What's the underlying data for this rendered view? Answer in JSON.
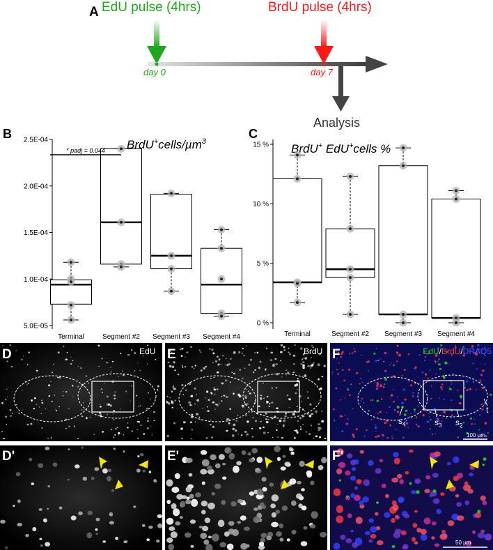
{
  "panel_letters": {
    "a": "A",
    "b": "B",
    "c": "C",
    "d": "D",
    "e": "E",
    "f": "F",
    "d_prime": "D'",
    "e_prime": "E'",
    "f_prime": "F'"
  },
  "timeline": {
    "edu_pulse": "EdU pulse (4hrs)",
    "brdu_pulse": "BrdU pulse (4hrs)",
    "day0": "day 0",
    "day7": "day 7",
    "analysis": "Analysis",
    "colors": {
      "edu": "#1fa81f",
      "brdu": "#ff1a1a",
      "arrow": "#444444"
    }
  },
  "chart_data": [
    {
      "type": "box",
      "panel": "B",
      "title_main": "BrdU",
      "title_sup": "+",
      "title_rest": "cells/µm",
      "title_sup2": "3",
      "categories": [
        "Terminal",
        "Segment #2",
        "Segment #3",
        "Segment #4"
      ],
      "ylim": [
        5e-05,
        0.00025
      ],
      "yticks": [
        {
          "v": 5e-05,
          "label": "5.0E-05"
        },
        {
          "v": 0.0001,
          "label": "1.0E-04"
        },
        {
          "v": 0.00015,
          "label": "1.5E-04"
        },
        {
          "v": 0.0002,
          "label": "2.0E-04"
        },
        {
          "v": 0.00025,
          "label": "2.5E-04"
        }
      ],
      "boxes": [
        {
          "q1": 7.3e-05,
          "median": 9.4e-05,
          "q3": 9.9e-05,
          "wlo": 5.6e-05,
          "whi": 0.000118
        },
        {
          "q1": 0.000116,
          "median": 0.000161,
          "q3": 0.00024,
          "wlo": 0.000113,
          "whi": 0.00024
        },
        {
          "q1": 0.000111,
          "median": 0.000125,
          "q3": 0.000191,
          "wlo": 8.7e-05,
          "whi": 0.000192
        },
        {
          "q1": 6.3e-05,
          "median": 9.4e-05,
          "q3": 0.000133,
          "wlo": 6e-05,
          "whi": 0.000153
        }
      ],
      "points": [
        [
          0.000118,
          0.0001,
          9.7e-05,
          7.2e-05,
          5.6e-05
        ],
        [
          0.00024,
          0.000161,
          0.000116,
          0.000113
        ],
        [
          0.000192,
          0.000125,
          0.000111,
          8.7e-05
        ],
        [
          0.000153,
          0.000133,
          0.0001,
          6.3e-05,
          6e-05
        ]
      ],
      "annotation": {
        "label": "* padj = 0.044",
        "from": 0,
        "to": 1
      }
    },
    {
      "type": "box",
      "panel": "C",
      "title_main": "BrdU",
      "title_sup": "+",
      "title_mid": " EdU",
      "title_sup2": "+",
      "title_rest": "cells %",
      "categories": [
        "Terminal",
        "Segment #2",
        "Segment #3",
        "Segment #4"
      ],
      "ylim": [
        0,
        15
      ],
      "yticks": [
        {
          "v": 0,
          "label": "0 %"
        },
        {
          "v": 5,
          "label": "5 %"
        },
        {
          "v": 10,
          "label": "10 %"
        },
        {
          "v": 15,
          "label": "15 %"
        }
      ],
      "boxes": [
        {
          "q1": 3.4,
          "median": 3.4,
          "q3": 12.1,
          "wlo": 1.7,
          "whi": 14.1
        },
        {
          "q1": 3.8,
          "median": 4.5,
          "q3": 7.9,
          "wlo": 0.7,
          "whi": 12.3
        },
        {
          "q1": 0.7,
          "median": 0.7,
          "q3": 13.2,
          "wlo": 0.0,
          "whi": 14.7
        },
        {
          "q1": 0.4,
          "median": 0.4,
          "q3": 10.4,
          "wlo": 0.0,
          "whi": 11.1
        }
      ],
      "points": [
        [
          14.1,
          12.1,
          3.4,
          3.3,
          1.7
        ],
        [
          12.3,
          7.9,
          4.5,
          3.8,
          0.7
        ],
        [
          14.7,
          13.2,
          0.7,
          0.0
        ],
        [
          11.1,
          10.4,
          0.4,
          0.0
        ]
      ]
    }
  ],
  "micrographs": {
    "d_label": "EdU",
    "e_label": "BrdU",
    "f_edu": "EdU",
    "f_brdu": "BrdU",
    "f_draq5": "DRAQ5",
    "slash": "/",
    "s4": "s",
    "s4_sub": "4",
    "s3": "s",
    "s3_sub": "3",
    "s2": "s",
    "s2_sub": "2",
    "t": "t",
    "scale_top": "100 µm",
    "scale_bottom": "50 µm",
    "colors": {
      "edu": "#22d622",
      "brdu": "#ff3b3b",
      "draq5": "#3344ff",
      "arrowhead": "#f2e600"
    }
  }
}
